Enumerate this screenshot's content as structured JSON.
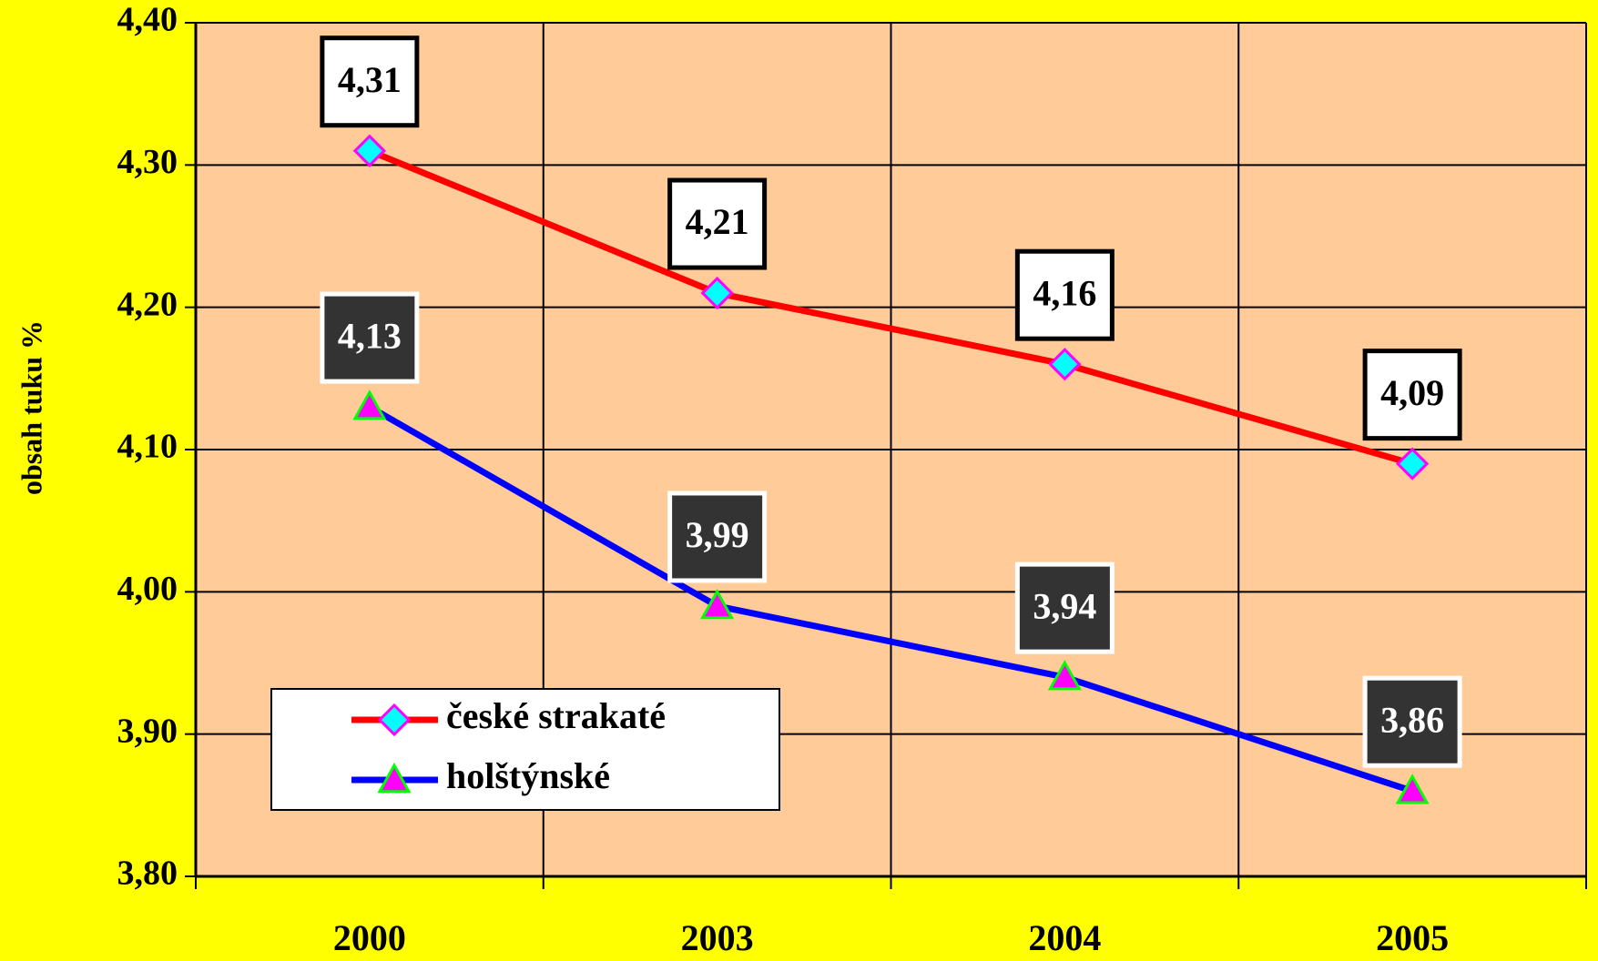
{
  "chart_data": {
    "type": "line",
    "y_label": "obsah tuku %",
    "categories": [
      "2000",
      "2003",
      "2004",
      "2005"
    ],
    "series": [
      {
        "name": "české strakaté",
        "color": "#ff0000",
        "marker": "diamond",
        "marker_fill": "#00ffff",
        "marker_edge": "#ff00ff",
        "values": [
          4.31,
          4.21,
          4.16,
          4.09
        ],
        "value_labels": [
          "4,31",
          "4,21",
          "4,16",
          "4,09"
        ]
      },
      {
        "name": "holštýnské",
        "color": "#0000ff",
        "marker": "triangle",
        "marker_fill": "#ff00ff",
        "marker_edge": "#00ff00",
        "values": [
          4.13,
          3.99,
          3.94,
          3.86
        ],
        "value_labels": [
          "4,13",
          "3,99",
          "3,94",
          "3,86"
        ]
      }
    ],
    "ylim": [
      3.8,
      4.4
    ],
    "yticks": [
      {
        "value": 3.8,
        "label": "3,80"
      },
      {
        "value": 3.9,
        "label": "3,90"
      },
      {
        "value": 4.0,
        "label": "4,00"
      },
      {
        "value": 4.1,
        "label": "4,10"
      },
      {
        "value": 4.2,
        "label": "4,20"
      },
      {
        "value": 4.3,
        "label": "4,30"
      },
      {
        "value": 4.4,
        "label": "4,40"
      }
    ],
    "grid": true,
    "legend": "lower left"
  }
}
